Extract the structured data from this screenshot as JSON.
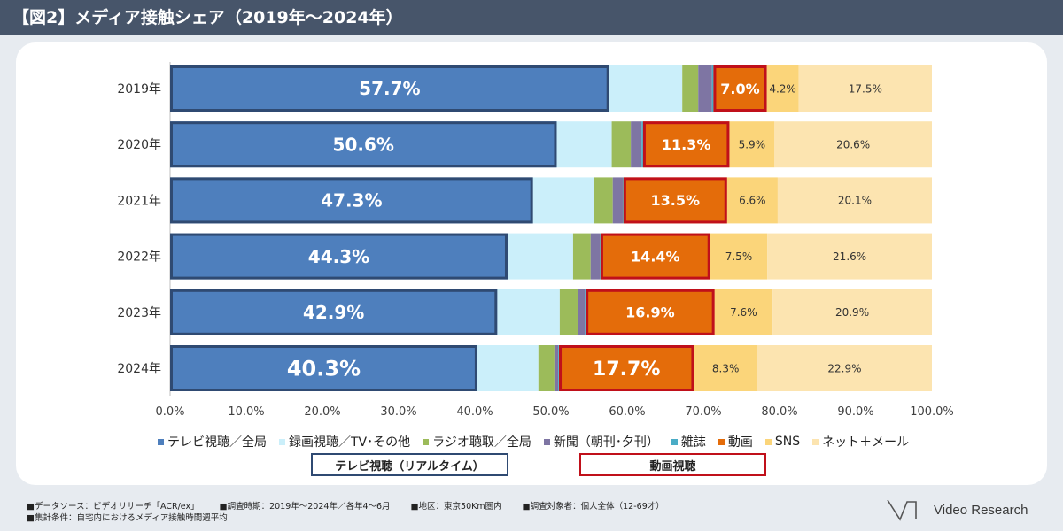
{
  "title": "【図2】メディア接触シェア（2019年～2024年）",
  "chart_data": {
    "type": "bar",
    "orientation": "horizontal",
    "stacked": true,
    "percent_stacked": true,
    "categories": [
      "2019年",
      "2020年",
      "2021年",
      "2022年",
      "2023年",
      "2024年"
    ],
    "xlim": [
      0,
      100
    ],
    "xticks": [
      "0.0%",
      "10.0%",
      "20.0%",
      "30.0%",
      "40.0%",
      "50.0%",
      "60.0%",
      "70.0%",
      "80.0%",
      "90.0%",
      "100.0%"
    ],
    "series": [
      {
        "name": "テレビ視聴／全局",
        "color": "#4e7fbd",
        "values": [
          57.7,
          50.6,
          47.3,
          44.3,
          42.9,
          40.3
        ],
        "labels": [
          "57.7%",
          "50.6%",
          "47.3%",
          "44.3%",
          "42.9%",
          "40.3%"
        ]
      },
      {
        "name": "録画視聴／TV･その他",
        "color": "#cbeffa",
        "values": [
          9.6,
          7.2,
          8.0,
          8.6,
          8.2,
          8.0
        ],
        "labels": [
          "",
          "",
          "",
          "",
          "",
          ""
        ]
      },
      {
        "name": "ラジオ聴取／全局",
        "color": "#9cbb5a",
        "values": [
          2.1,
          2.5,
          2.4,
          2.3,
          2.4,
          2.1
        ],
        "labels": [
          "",
          "",
          "",
          "",
          "",
          ""
        ]
      },
      {
        "name": "新聞（朝刊･夕刊）",
        "color": "#7e75a3",
        "values": [
          1.8,
          1.4,
          1.3,
          1.2,
          0.9,
          0.5
        ],
        "labels": [
          "",
          "",
          "",
          "",
          "",
          ""
        ]
      },
      {
        "name": "雑誌",
        "color": "#4aacc6",
        "values": [
          0.2,
          0.2,
          0.1,
          0.1,
          0.1,
          0.1
        ],
        "labels": [
          "",
          "",
          "",
          "",
          "",
          ""
        ]
      },
      {
        "name": "動画",
        "color": "#e46c0a",
        "values": [
          7.0,
          11.3,
          13.5,
          14.4,
          16.9,
          17.7
        ],
        "labels": [
          "7.0%",
          "11.3%",
          "13.5%",
          "14.4%",
          "16.9%",
          "17.7%"
        ]
      },
      {
        "name": "SNS",
        "color": "#fbd57a",
        "values": [
          4.2,
          5.9,
          6.6,
          7.5,
          7.6,
          8.3
        ],
        "labels": [
          "4.2%",
          "5.9%",
          "6.6%",
          "7.5%",
          "7.6%",
          "8.3%"
        ]
      },
      {
        "name": "ネット＋メール",
        "color": "#fce4b0",
        "values": [
          17.5,
          20.6,
          20.1,
          21.6,
          20.9,
          22.9
        ],
        "labels": [
          "17.5%",
          "20.6%",
          "20.1%",
          "21.6%",
          "20.9%",
          "22.9%"
        ]
      }
    ],
    "highlight_groups": [
      {
        "label": "テレビ視聴（リアルタイム）",
        "series_index": 0,
        "color": "#2f4a72"
      },
      {
        "label": "動画視聴",
        "series_index": 5,
        "color": "#c0101a"
      }
    ]
  },
  "legend": [
    {
      "label": "テレビ視聴／全局",
      "color": "#4e7fbd"
    },
    {
      "label": "録画視聴／TV･その他",
      "color": "#cbeffa"
    },
    {
      "label": "ラジオ聴取／全局",
      "color": "#9cbb5a"
    },
    {
      "label": "新聞（朝刊･夕刊）",
      "color": "#7e75a3"
    },
    {
      "label": "雑誌",
      "color": "#4aacc6"
    },
    {
      "label": "動画",
      "color": "#e46c0a"
    },
    {
      "label": "SNS",
      "color": "#fbd57a"
    },
    {
      "label": "ネット＋メール",
      "color": "#fce4b0"
    }
  ],
  "footer": {
    "source": "■データソース：ビデオリサーチ「ACR/ex」",
    "period": "■調査時期：2019年～2024年／各年4～6月",
    "area": "■地区：東京50Km圏内",
    "target": "■調査対象者：個人全体（12-69才）",
    "condition": "■集計条件：自宅内におけるメディア接触時間週平均"
  },
  "logo": {
    "text": "Video Research"
  }
}
